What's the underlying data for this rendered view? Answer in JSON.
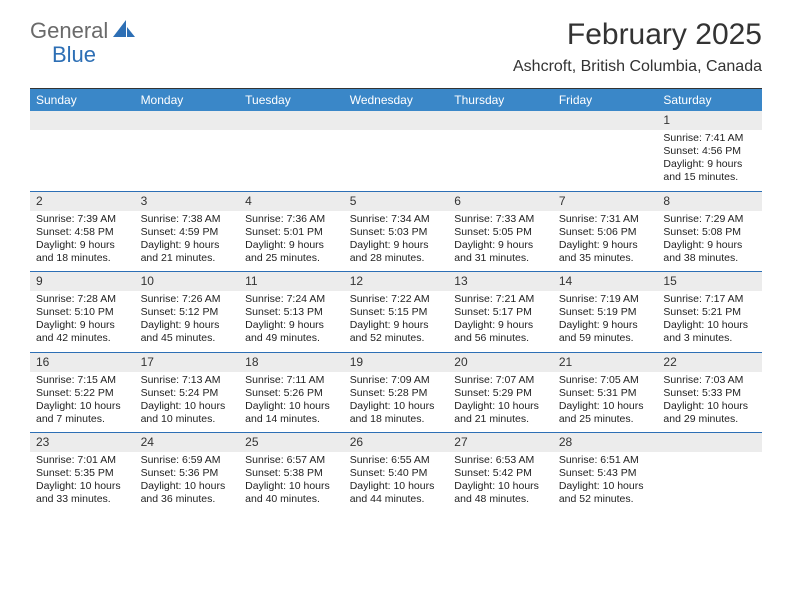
{
  "brand": {
    "part1": "General",
    "part2": "Blue"
  },
  "title": "February 2025",
  "subtitle": "Ashcroft, British Columbia, Canada",
  "header_bg": "#3a87c8",
  "brand_color": "#2d6fb5",
  "day_names": [
    "Sunday",
    "Monday",
    "Tuesday",
    "Wednesday",
    "Thursday",
    "Friday",
    "Saturday"
  ],
  "weeks": [
    [
      {
        "n": "",
        "empty": true
      },
      {
        "n": "",
        "empty": true
      },
      {
        "n": "",
        "empty": true
      },
      {
        "n": "",
        "empty": true
      },
      {
        "n": "",
        "empty": true
      },
      {
        "n": "",
        "empty": true
      },
      {
        "n": "1",
        "sr": "Sunrise: 7:41 AM",
        "ss": "Sunset: 4:56 PM",
        "dl": "Daylight: 9 hours and 15 minutes."
      }
    ],
    [
      {
        "n": "2",
        "sr": "Sunrise: 7:39 AM",
        "ss": "Sunset: 4:58 PM",
        "dl": "Daylight: 9 hours and 18 minutes."
      },
      {
        "n": "3",
        "sr": "Sunrise: 7:38 AM",
        "ss": "Sunset: 4:59 PM",
        "dl": "Daylight: 9 hours and 21 minutes."
      },
      {
        "n": "4",
        "sr": "Sunrise: 7:36 AM",
        "ss": "Sunset: 5:01 PM",
        "dl": "Daylight: 9 hours and 25 minutes."
      },
      {
        "n": "5",
        "sr": "Sunrise: 7:34 AM",
        "ss": "Sunset: 5:03 PM",
        "dl": "Daylight: 9 hours and 28 minutes."
      },
      {
        "n": "6",
        "sr": "Sunrise: 7:33 AM",
        "ss": "Sunset: 5:05 PM",
        "dl": "Daylight: 9 hours and 31 minutes."
      },
      {
        "n": "7",
        "sr": "Sunrise: 7:31 AM",
        "ss": "Sunset: 5:06 PM",
        "dl": "Daylight: 9 hours and 35 minutes."
      },
      {
        "n": "8",
        "sr": "Sunrise: 7:29 AM",
        "ss": "Sunset: 5:08 PM",
        "dl": "Daylight: 9 hours and 38 minutes."
      }
    ],
    [
      {
        "n": "9",
        "sr": "Sunrise: 7:28 AM",
        "ss": "Sunset: 5:10 PM",
        "dl": "Daylight: 9 hours and 42 minutes."
      },
      {
        "n": "10",
        "sr": "Sunrise: 7:26 AM",
        "ss": "Sunset: 5:12 PM",
        "dl": "Daylight: 9 hours and 45 minutes."
      },
      {
        "n": "11",
        "sr": "Sunrise: 7:24 AM",
        "ss": "Sunset: 5:13 PM",
        "dl": "Daylight: 9 hours and 49 minutes."
      },
      {
        "n": "12",
        "sr": "Sunrise: 7:22 AM",
        "ss": "Sunset: 5:15 PM",
        "dl": "Daylight: 9 hours and 52 minutes."
      },
      {
        "n": "13",
        "sr": "Sunrise: 7:21 AM",
        "ss": "Sunset: 5:17 PM",
        "dl": "Daylight: 9 hours and 56 minutes."
      },
      {
        "n": "14",
        "sr": "Sunrise: 7:19 AM",
        "ss": "Sunset: 5:19 PM",
        "dl": "Daylight: 9 hours and 59 minutes."
      },
      {
        "n": "15",
        "sr": "Sunrise: 7:17 AM",
        "ss": "Sunset: 5:21 PM",
        "dl": "Daylight: 10 hours and 3 minutes."
      }
    ],
    [
      {
        "n": "16",
        "sr": "Sunrise: 7:15 AM",
        "ss": "Sunset: 5:22 PM",
        "dl": "Daylight: 10 hours and 7 minutes."
      },
      {
        "n": "17",
        "sr": "Sunrise: 7:13 AM",
        "ss": "Sunset: 5:24 PM",
        "dl": "Daylight: 10 hours and 10 minutes."
      },
      {
        "n": "18",
        "sr": "Sunrise: 7:11 AM",
        "ss": "Sunset: 5:26 PM",
        "dl": "Daylight: 10 hours and 14 minutes."
      },
      {
        "n": "19",
        "sr": "Sunrise: 7:09 AM",
        "ss": "Sunset: 5:28 PM",
        "dl": "Daylight: 10 hours and 18 minutes."
      },
      {
        "n": "20",
        "sr": "Sunrise: 7:07 AM",
        "ss": "Sunset: 5:29 PM",
        "dl": "Daylight: 10 hours and 21 minutes."
      },
      {
        "n": "21",
        "sr": "Sunrise: 7:05 AM",
        "ss": "Sunset: 5:31 PM",
        "dl": "Daylight: 10 hours and 25 minutes."
      },
      {
        "n": "22",
        "sr": "Sunrise: 7:03 AM",
        "ss": "Sunset: 5:33 PM",
        "dl": "Daylight: 10 hours and 29 minutes."
      }
    ],
    [
      {
        "n": "23",
        "sr": "Sunrise: 7:01 AM",
        "ss": "Sunset: 5:35 PM",
        "dl": "Daylight: 10 hours and 33 minutes."
      },
      {
        "n": "24",
        "sr": "Sunrise: 6:59 AM",
        "ss": "Sunset: 5:36 PM",
        "dl": "Daylight: 10 hours and 36 minutes."
      },
      {
        "n": "25",
        "sr": "Sunrise: 6:57 AM",
        "ss": "Sunset: 5:38 PM",
        "dl": "Daylight: 10 hours and 40 minutes."
      },
      {
        "n": "26",
        "sr": "Sunrise: 6:55 AM",
        "ss": "Sunset: 5:40 PM",
        "dl": "Daylight: 10 hours and 44 minutes."
      },
      {
        "n": "27",
        "sr": "Sunrise: 6:53 AM",
        "ss": "Sunset: 5:42 PM",
        "dl": "Daylight: 10 hours and 48 minutes."
      },
      {
        "n": "28",
        "sr": "Sunrise: 6:51 AM",
        "ss": "Sunset: 5:43 PM",
        "dl": "Daylight: 10 hours and 52 minutes."
      },
      {
        "n": "",
        "empty": true
      }
    ]
  ]
}
